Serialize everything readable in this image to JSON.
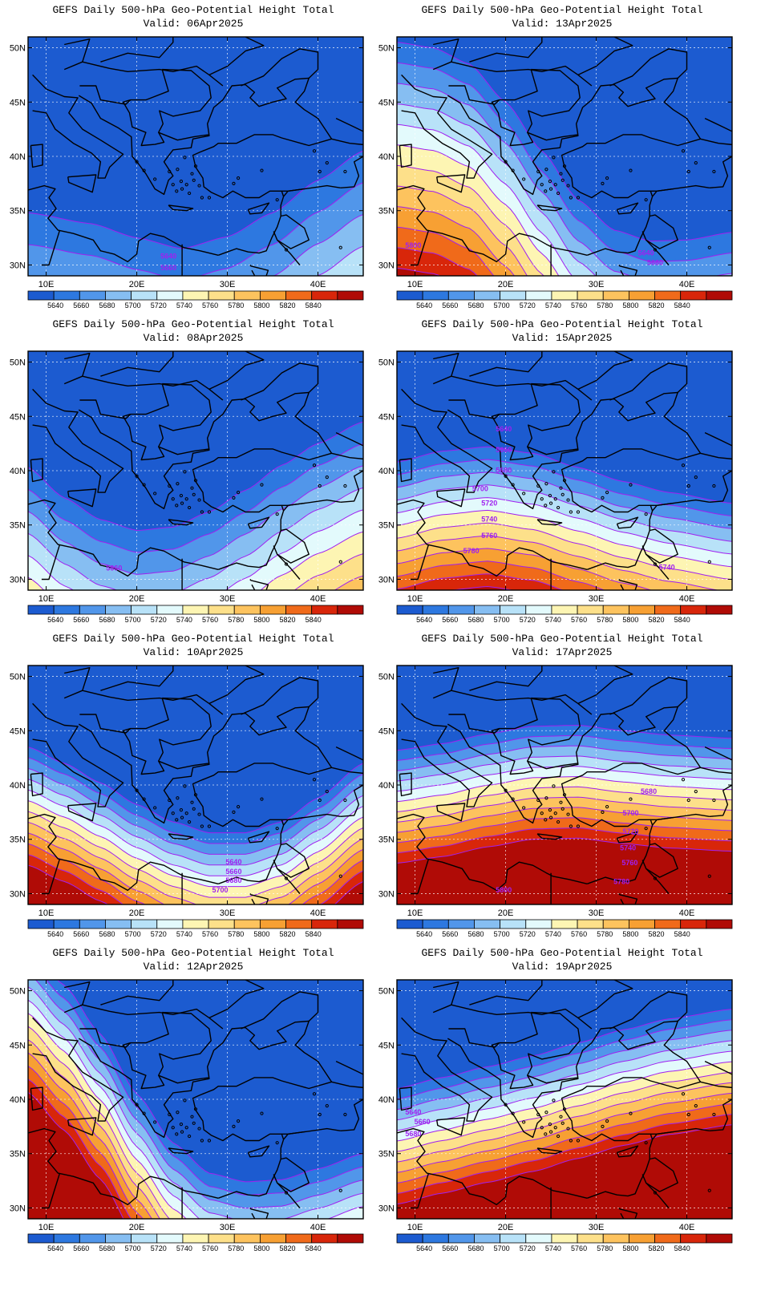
{
  "map_extent": {
    "lon_min": 8,
    "lon_max": 45,
    "lat_min": 29,
    "lat_max": 51
  },
  "lon_ticks": [
    {
      "value": 10,
      "label": "10E"
    },
    {
      "value": 20,
      "label": "20E"
    },
    {
      "value": 30,
      "label": "30E"
    },
    {
      "value": 40,
      "label": "40E"
    }
  ],
  "lat_ticks": [
    {
      "value": 30,
      "label": "30N"
    },
    {
      "value": 35,
      "label": "35N"
    },
    {
      "value": 40,
      "label": "40N"
    },
    {
      "value": 45,
      "label": "45N"
    },
    {
      "value": 50,
      "label": "50N"
    }
  ],
  "contour_interval": 20,
  "colorbar": {
    "labels": [
      "5640",
      "5660",
      "5680",
      "5700",
      "5720",
      "5740",
      "5760",
      "5780",
      "5800",
      "5820",
      "5840"
    ],
    "colors": [
      "#1c5bd0",
      "#2d78e0",
      "#5196ea",
      "#86bef2",
      "#b8e2f8",
      "#e3fafc",
      "#fdf5b3",
      "#fde08a",
      "#fdc35e",
      "#f7a033",
      "#f06a1a",
      "#d8260a",
      "#b00b06"
    ]
  },
  "colors": {
    "contour_line": "#a020f0",
    "coast": "#000000",
    "grid": "#ffffff"
  },
  "panels": [
    {
      "title": "GEFS Daily 500-hPa Geo-Potential Height Total",
      "valid": "Valid: 06Apr2025",
      "field": {
        "lon": [
          8,
          15,
          20,
          25,
          30,
          35,
          40,
          45
        ],
        "lat": [
          34.8,
          33.8,
          32.5,
          31.5,
          32.6,
          34.8,
          37.8,
          40.5
        ],
        "gradient": 6.5,
        "shape": 0
      },
      "contour_labels": [
        {
          "text": "5640",
          "lon": 23.5,
          "lat": 30.6
        },
        {
          "text": "5660",
          "lon": 23.5,
          "lat": 29.5
        }
      ]
    },
    {
      "title": "GEFS Daily 500-hPa Geo-Potential Height Total",
      "valid": "Valid: 13Apr2025",
      "field": {
        "lon": [
          8,
          12,
          16,
          20,
          24,
          28,
          32,
          36,
          40,
          45
        ],
        "lat": [
          50.5,
          50,
          48.5,
          45,
          40.5,
          36,
          33.2,
          32.2,
          32.3,
          33.0
        ],
        "gradient": 4.2,
        "shape": 0
      },
      "contour_labels": [
        {
          "text": "5800",
          "lon": 9.8,
          "lat": 31.6
        },
        {
          "text": "5640",
          "lon": 35.5,
          "lat": 30.9
        },
        {
          "text": "5660",
          "lon": 36.5,
          "lat": 30.0
        }
      ]
    },
    {
      "title": "GEFS Daily 500-hPa Geo-Potential Height Total",
      "valid": "Valid: 08Apr2025",
      "field": {
        "lon": [
          8,
          12,
          16,
          20,
          24,
          28,
          32,
          36,
          40,
          45
        ],
        "lat": [
          40.3,
          37.5,
          35.5,
          34.5,
          34.8,
          36.2,
          38.2,
          40.5,
          42.5,
          44.5
        ],
        "gradient": 4.5,
        "shape": 0
      },
      "contour_labels": [
        {
          "text": "5660",
          "lon": 17.5,
          "lat": 30.8
        }
      ]
    },
    {
      "title": "GEFS Daily 500-hPa Geo-Potential Height Total",
      "valid": "Valid: 15Apr2025",
      "field": {
        "lon": [
          8,
          13,
          18,
          23,
          28,
          33,
          38,
          45
        ],
        "lat": [
          40.8,
          41.8,
          42.2,
          41.6,
          40.3,
          39.0,
          38.0,
          37.0
        ],
        "gradient": 2.6,
        "shape": 0
      },
      "contour_labels": [
        {
          "text": "5640",
          "lon": 19.8,
          "lat": 43.6
        },
        {
          "text": "5660",
          "lon": 19.8,
          "lat": 41.7
        },
        {
          "text": "5680",
          "lon": 19.8,
          "lat": 39.8
        },
        {
          "text": "5700",
          "lon": 17.2,
          "lat": 38.1
        },
        {
          "text": "5720",
          "lon": 18.2,
          "lat": 36.8
        },
        {
          "text": "5740",
          "lon": 18.2,
          "lat": 35.3
        },
        {
          "text": "5760",
          "lon": 18.2,
          "lat": 33.8
        },
        {
          "text": "5780",
          "lon": 16.2,
          "lat": 32.4
        },
        {
          "text": "5740",
          "lon": 37.8,
          "lat": 30.9
        }
      ]
    },
    {
      "title": "GEFS Daily 500-hPa Geo-Potential Height Total",
      "valid": "Valid: 10Apr2025",
      "field": {
        "lon": [
          8,
          12,
          16,
          20,
          24,
          28,
          32,
          36,
          40,
          45
        ],
        "lat": [
          43.5,
          42.0,
          40.2,
          38.2,
          36.6,
          35.6,
          35.6,
          36.6,
          38.8,
          42.0
        ],
        "gradient": 2.2,
        "shape": 0
      },
      "contour_labels": [
        {
          "text": "5640",
          "lon": 30.7,
          "lat": 32.7
        },
        {
          "text": "5660",
          "lon": 30.7,
          "lat": 31.8
        },
        {
          "text": "5680",
          "lon": 30.7,
          "lat": 31.0
        },
        {
          "text": "5700",
          "lon": 29.2,
          "lat": 30.1
        }
      ]
    },
    {
      "title": "GEFS Daily 500-hPa Geo-Potential Height Total",
      "valid": "Valid: 17Apr2025",
      "field": {
        "lon": [
          8,
          13,
          18,
          23,
          28,
          33,
          38,
          45
        ],
        "lat": [
          43.2,
          43.8,
          44.7,
          45.4,
          45.5,
          45.0,
          44.6,
          44.3
        ],
        "gradient": 2.1,
        "shape": 0
      },
      "contour_labels": [
        {
          "text": "5680",
          "lon": 35.8,
          "lat": 39.2
        },
        {
          "text": "5700",
          "lon": 33.8,
          "lat": 37.2
        },
        {
          "text": "5720",
          "lon": 33.8,
          "lat": 35.5
        },
        {
          "text": "5740",
          "lon": 33.5,
          "lat": 34.0
        },
        {
          "text": "5760",
          "lon": 33.7,
          "lat": 32.6
        },
        {
          "text": "5800",
          "lon": 19.8,
          "lat": 30.1
        },
        {
          "text": "5780",
          "lon": 32.8,
          "lat": 30.9
        }
      ]
    },
    {
      "title": "GEFS Daily 500-hPa Geo-Potential Height Total",
      "valid": "Valid: 12Apr2025",
      "field": {
        "lon": [
          8,
          12,
          16,
          20,
          24,
          28,
          32,
          36,
          40,
          45
        ],
        "lat": [
          54.0,
          50.5,
          46.0,
          40.5,
          36.0,
          33.2,
          32.4,
          32.6,
          33.6,
          35.0
        ],
        "gradient": 2.7,
        "shape": 0
      },
      "contour_labels": []
    },
    {
      "title": "GEFS Daily 500-hPa Geo-Potential Height Total",
      "valid": "Valid: 19Apr2025",
      "field": {
        "lon": [
          8,
          13,
          18,
          23,
          28,
          33,
          38,
          45
        ],
        "lat": [
          41.0,
          42.0,
          43.0,
          44.0,
          45.2,
          46.4,
          47.4,
          48.3
        ],
        "gradient": 2.15,
        "shape": 0
      },
      "contour_labels": [
        {
          "text": "5640",
          "lon": 9.8,
          "lat": 38.6
        },
        {
          "text": "5660",
          "lon": 10.8,
          "lat": 37.7
        },
        {
          "text": "5680",
          "lon": 9.8,
          "lat": 36.6
        }
      ]
    }
  ]
}
